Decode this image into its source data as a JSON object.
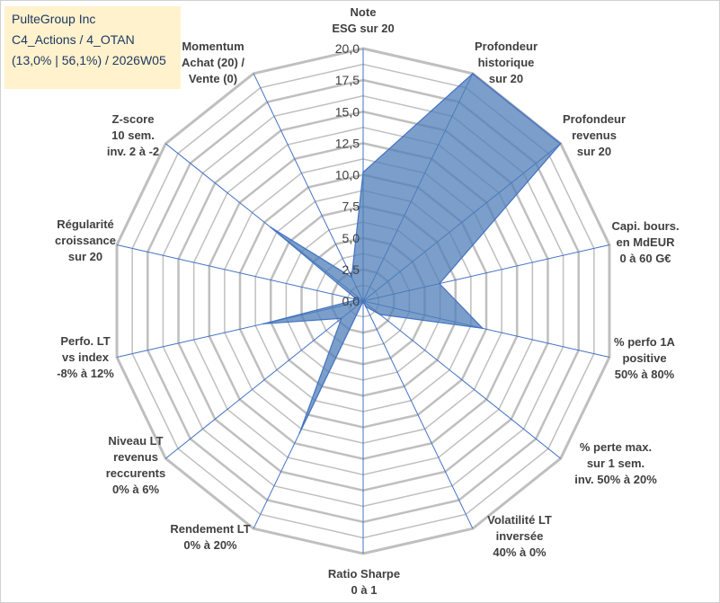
{
  "title_box": {
    "line1": "PulteGroup Inc",
    "line2": "C4_Actions / 4_OTAN",
    "line3": "(13,0% | 56,1%) / 2026W05"
  },
  "chart_data": {
    "type": "radar",
    "rlim": [
      0,
      20
    ],
    "ticks": [
      "0,0",
      "2,5",
      "5,0",
      "7,5",
      "10,0",
      "12,5",
      "15,0",
      "17,5",
      "20,0"
    ],
    "categories": [
      [
        "Note",
        "ESG sur 20"
      ],
      [
        "Profondeur",
        "historique",
        "sur 20"
      ],
      [
        "Profondeur",
        "revenus",
        "sur 20"
      ],
      [
        "Capi. bours.",
        "en MdEUR",
        "0 à 60 G€"
      ],
      [
        "% perfo 1A",
        "positive",
        "50% à 80%"
      ],
      [
        "% perte max.",
        "sur 1 sem.",
        "inv. 50% à 20%"
      ],
      [
        "Volatilité LT",
        "inversée",
        "40% à 0%"
      ],
      [
        "Ratio Sharpe",
        "0 à 1"
      ],
      [
        "Rendement LT",
        "0% à 20%"
      ],
      [
        "Niveau LT",
        "revenus",
        "reccurents",
        "0% à 6%"
      ],
      [
        "Perfo. LT",
        "vs index",
        "-8% à 12%"
      ],
      [
        "Régularité",
        "croissance",
        "sur 20"
      ],
      [
        "Z-score",
        "10 sem.",
        "inv. 2 à -2"
      ],
      [
        "Momentum",
        "Achat (20) /",
        "Vente (0)"
      ]
    ],
    "series": [
      {
        "values": [
          10.2,
          20.0,
          20.0,
          6.2,
          9.7,
          1.7,
          0.5,
          0.0,
          11.6,
          2.2,
          8.1,
          0.5,
          9.4,
          2.1
        ]
      }
    ],
    "fill_color": "#4f7fb8",
    "fill_opacity": 0.75,
    "outline_color": "#4472c4",
    "grid_color": "#bfbfbf",
    "spoke_color": "#4472c4",
    "grid": true
  }
}
